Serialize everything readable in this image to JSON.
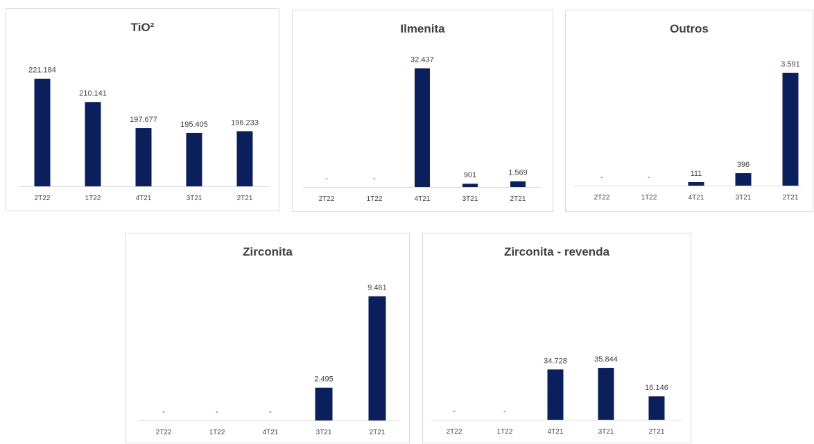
{
  "colors": {
    "bar": "#0b1f5c",
    "axis": "#d9d9d9",
    "text": "#404040"
  },
  "chart_data": [
    {
      "type": "bar",
      "title": "TiO²",
      "categories": [
        "2T22",
        "1T22",
        "4T21",
        "3T21",
        "2T21"
      ],
      "values": [
        221184,
        210141,
        197677,
        195405,
        196233
      ],
      "labels": [
        "221.184",
        "210.141",
        "197.677",
        "195.405",
        "196.233"
      ],
      "ylim": [
        170000,
        230000
      ],
      "grid": false,
      "legend": "none"
    },
    {
      "type": "bar",
      "title": "Ilmenita",
      "categories": [
        "2T22",
        "1T22",
        "4T21",
        "3T21",
        "2T21"
      ],
      "values": [
        0,
        0,
        32437,
        901,
        1569
      ],
      "labels": [
        "-",
        "-",
        "32.437",
        "901",
        "1.569"
      ],
      "ylim": [
        0,
        35000
      ],
      "grid": false,
      "legend": "none"
    },
    {
      "type": "bar",
      "title": "Outros",
      "categories": [
        "2T22",
        "1T22",
        "4T21",
        "3T21",
        "2T21"
      ],
      "values": [
        0,
        0,
        111,
        396,
        3591
      ],
      "labels": [
        "-",
        "-",
        "111",
        "396",
        "3.591"
      ],
      "ylim": [
        0,
        3900
      ],
      "grid": false,
      "legend": "none"
    },
    {
      "type": "bar",
      "title": "Zirconita",
      "categories": [
        "2T22",
        "1T22",
        "4T21",
        "3T21",
        "2T21"
      ],
      "values": [
        0,
        0,
        0,
        2495,
        9461
      ],
      "labels": [
        "-",
        "-",
        "-",
        "2.495",
        "9.461"
      ],
      "ylim": [
        0,
        10500
      ],
      "grid": false,
      "legend": "none"
    },
    {
      "type": "bar",
      "title": "Zirconita - revenda",
      "categories": [
        "2T22",
        "1T22",
        "4T21",
        "3T21",
        "2T21"
      ],
      "values": [
        0,
        0,
        34728,
        35844,
        16146
      ],
      "labels": [
        "-",
        "-",
        "34.728",
        "35.844",
        "16.146"
      ],
      "ylim": [
        0,
        55000
      ],
      "grid": false,
      "legend": "none"
    }
  ]
}
